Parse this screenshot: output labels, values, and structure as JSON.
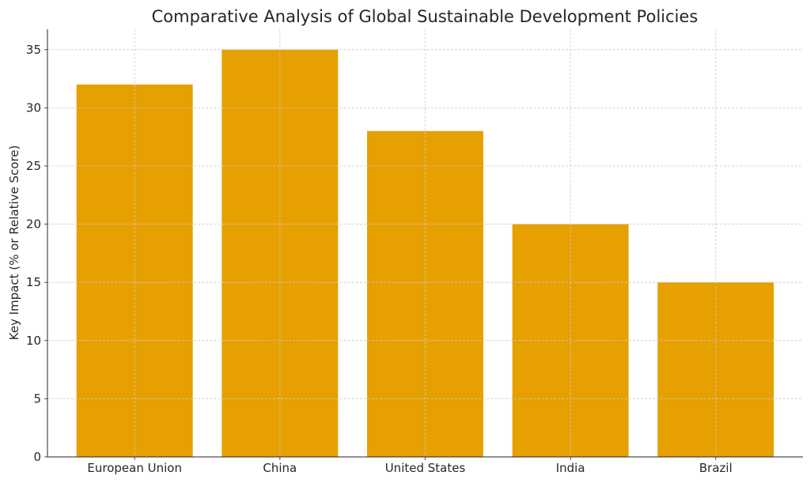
{
  "chart_data": {
    "type": "bar",
    "title": "Comparative Analysis of Global Sustainable Development Policies",
    "xlabel": "",
    "ylabel": "Key Impact (% or Relative Score)",
    "categories": [
      "European Union",
      "China",
      "United States",
      "India",
      "Brazil"
    ],
    "values": [
      32,
      35,
      28,
      20,
      15
    ],
    "ylim": [
      0,
      36.75
    ],
    "yticks": [
      0,
      5,
      10,
      15,
      20,
      25,
      30,
      35
    ],
    "grid": true,
    "bar_color": "#E6A000"
  }
}
